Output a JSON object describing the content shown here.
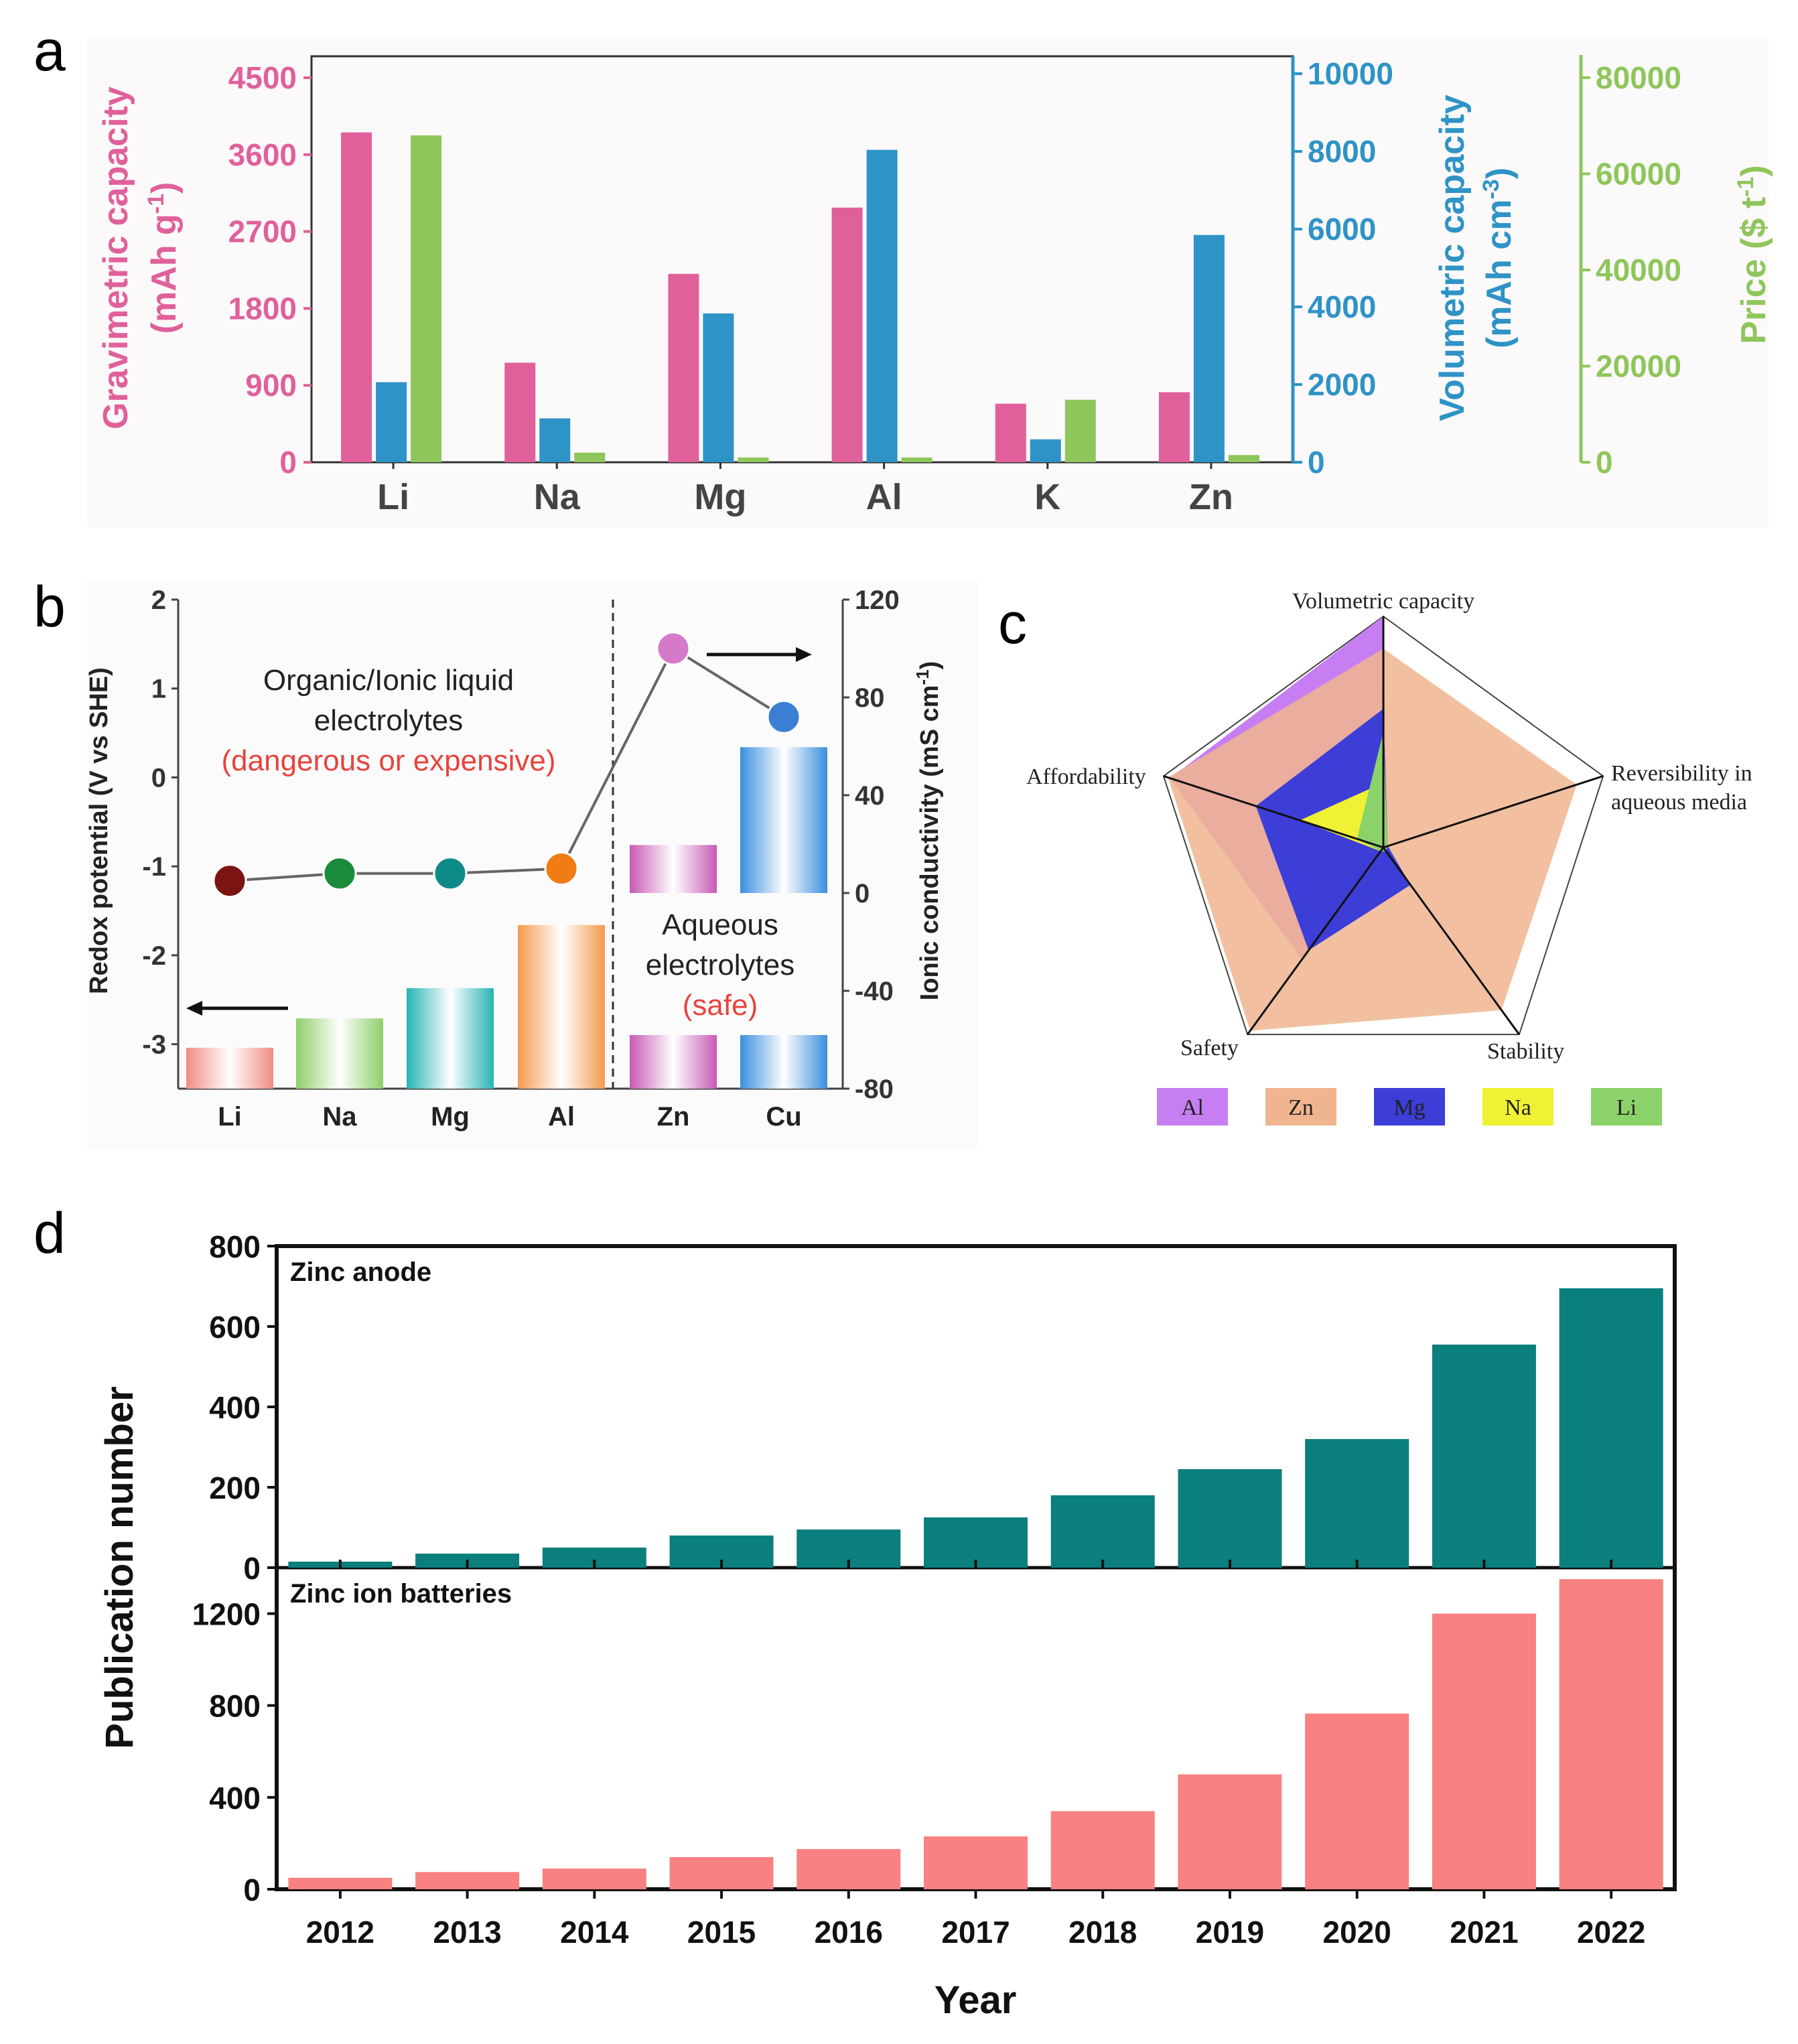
{
  "panel_labels": [
    "a",
    "b",
    "c",
    "d"
  ],
  "colors": {
    "pink": "#e0609b",
    "blue": "#2e93c6",
    "green": "#8fc65b",
    "teal": "#0a7f7d",
    "salmon": "#f98181",
    "red_text": "#e8433c",
    "al": "#c77ef2",
    "zn": "#f0b58f",
    "mg": "#3d3dd8",
    "na": "#f0f034",
    "li": "#8bd26a"
  },
  "chart_data": [
    {
      "panel": "a",
      "type": "bar",
      "categories": [
        "Li",
        "Na",
        "Mg",
        "Al",
        "K",
        "Zn"
      ],
      "series": [
        {
          "name": "Gravimetric capacity",
          "axis": "left",
          "color": "#e0609b",
          "values": [
            3860,
            1165,
            2205,
            2980,
            685,
            820
          ]
        },
        {
          "name": "Volumetric capacity",
          "axis": "right1",
          "color": "#2e93c6",
          "values": [
            2060,
            1130,
            3830,
            8040,
            590,
            5850
          ]
        },
        {
          "name": "Price",
          "axis": "right2",
          "color": "#8fc65b",
          "values": [
            68000,
            2000,
            1000,
            1000,
            13000,
            1500
          ]
        }
      ],
      "axes": {
        "left": {
          "title": "Gravimetric capacity",
          "unit": "(mAh g",
          "sup": "-1",
          "unit_end": ")",
          "ticks": [
            "0",
            "900",
            "1800",
            "2700",
            "3600",
            "4500"
          ],
          "ylim": [
            0,
            4500
          ]
        },
        "right1": {
          "title": "Volumetric capacity",
          "unit": "(mAh cm",
          "sup": "-3",
          "unit_end": ")",
          "ticks": [
            "0",
            "2000",
            "4000",
            "6000",
            "8000",
            "10000"
          ],
          "ylim": [
            0,
            10000
          ]
        },
        "right2": {
          "title": "Price",
          "unit": "($ t",
          "sup": "-1",
          "unit_end": ")",
          "ticks": [
            "0",
            "20000",
            "40000",
            "60000",
            "80000"
          ],
          "ylim": [
            0,
            80000
          ]
        }
      }
    },
    {
      "panel": "b",
      "type": "bar",
      "categories": [
        "Li",
        "Na",
        "Mg",
        "Al",
        "Zn",
        "Cu"
      ],
      "redox_potential": [
        -3.04,
        -2.71,
        -2.37,
        -1.66,
        -0.76,
        0.34
      ],
      "ionic_conductivity": [
        5,
        8,
        8,
        10,
        100,
        72
      ],
      "left_axis": {
        "title": "Redox potential (V vs SHE)",
        "ticks": [
          "-3",
          "-2",
          "-1",
          "0",
          "1",
          "2"
        ],
        "ylim": [
          -3.5,
          2
        ]
      },
      "right_axis": {
        "title": "Ionic conductivity (mS cm",
        "sup": "-1",
        "title_end": ")",
        "ticks": [
          "-80",
          "-40",
          "0",
          "40",
          "80",
          "120"
        ],
        "ylim": [
          -80,
          120
        ]
      },
      "annotations": {
        "organic_line1": "Organic/Ionic liquid",
        "organic_line2": "electrolytes",
        "organic_warn": "(dangerous or expensive)",
        "aqueous_line1": "Aqueous",
        "aqueous_line2": "electrolytes",
        "aqueous_safe": "(safe)"
      }
    },
    {
      "panel": "c",
      "type": "radar",
      "axes": [
        "Volumetric capacity",
        "Reversibility in aqueous media",
        "Stability",
        "Safety",
        "Affordability"
      ],
      "axis_label_lines": {
        "volumetric": "Volumetric capacity",
        "reversibility_1": "Reversibility in",
        "reversibility_2": "aqueous media",
        "stability": "Stability",
        "safety": "Safety",
        "affordability": "Affordability"
      },
      "series": [
        {
          "name": "Al",
          "color": "#c77ef2",
          "values": [
            1.0,
            0.02,
            0.05,
            0.6,
            0.97
          ]
        },
        {
          "name": "Zn",
          "color": "#f0b58f",
          "values": [
            0.86,
            0.88,
            0.87,
            0.98,
            0.98
          ]
        },
        {
          "name": "Mg",
          "color": "#3d3dd8",
          "values": [
            0.6,
            0.02,
            0.2,
            0.55,
            0.58
          ]
        },
        {
          "name": "Na",
          "color": "#f0f034",
          "values": [
            0.28,
            0.02,
            0.02,
            0.02,
            0.38
          ]
        },
        {
          "name": "Li",
          "color": "#8bd26a",
          "values": [
            0.5,
            0.02,
            0.02,
            0.02,
            0.12
          ]
        }
      ]
    },
    {
      "panel": "d",
      "type": "bar",
      "ylabel": "Publication number",
      "xlabel": "Year",
      "categories": [
        "2012",
        "2013",
        "2014",
        "2015",
        "2016",
        "2017",
        "2018",
        "2019",
        "2020",
        "2021",
        "2022"
      ],
      "subplots": [
        {
          "title": "Zinc anode",
          "color": "#0a7f7d",
          "values": [
            15,
            35,
            50,
            80,
            95,
            125,
            180,
            245,
            320,
            555,
            695
          ],
          "ticks": [
            "0",
            "200",
            "400",
            "600",
            "800"
          ],
          "ylim": [
            0,
            800
          ]
        },
        {
          "title": "Zinc ion batteries",
          "color": "#f98181",
          "values": [
            50,
            75,
            90,
            140,
            175,
            230,
            340,
            500,
            765,
            1200,
            1350
          ],
          "ticks": [
            "0",
            "400",
            "800",
            "1200"
          ],
          "ylim": [
            0,
            1400
          ]
        }
      ]
    }
  ]
}
